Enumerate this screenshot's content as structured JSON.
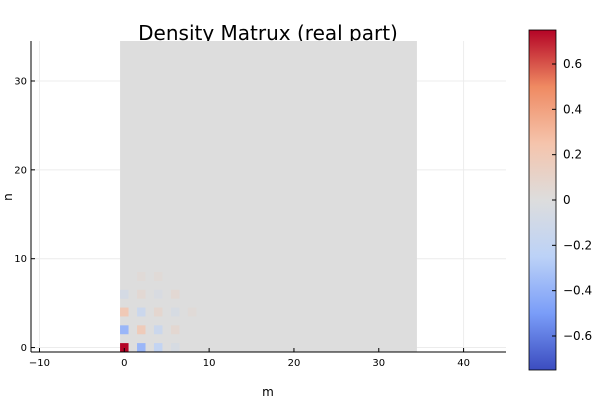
{
  "chart_data": {
    "type": "heatmap",
    "title": "Density Matrux (real part)",
    "xlabel": "m",
    "ylabel": "n",
    "xlim": [
      -11,
      45
    ],
    "ylim": [
      -0.5,
      34.5
    ],
    "xticks": [
      -10,
      0,
      10,
      20,
      30,
      40
    ],
    "yticks": [
      0,
      10,
      20,
      30
    ],
    "grid": true,
    "matrix_extent": {
      "m": [
        -0.5,
        34.5
      ],
      "n": [
        -0.5,
        34.5
      ]
    },
    "background_value": 0,
    "colormap": {
      "name": "coolwarm",
      "min": -0.75,
      "max": 0.75,
      "stops": [
        "#3b4cc0",
        "#7a9df8",
        "#bcd2f7",
        "#dddddd",
        "#f5c4ac",
        "#ef8a62",
        "#b40426"
      ]
    },
    "colorbar_ticks": [
      0.6,
      0.4,
      0.2,
      0,
      -0.2,
      -0.4,
      -0.6
    ],
    "colorbar_tick_labels": [
      "0.6",
      "0.4",
      "0.2",
      "0",
      "−0.2",
      "−0.4",
      "−0.6"
    ],
    "cells": [
      {
        "m": 0,
        "n": 0,
        "value": 0.75
      },
      {
        "m": 2,
        "n": 0,
        "value": -0.38
      },
      {
        "m": 4,
        "n": 0,
        "value": -0.2
      },
      {
        "m": 6,
        "n": 0,
        "value": -0.05
      },
      {
        "m": 0,
        "n": 2,
        "value": -0.38
      },
      {
        "m": 2,
        "n": 2,
        "value": 0.18
      },
      {
        "m": 4,
        "n": 2,
        "value": -0.14
      },
      {
        "m": 6,
        "n": 2,
        "value": 0.06
      },
      {
        "m": 0,
        "n": 4,
        "value": 0.2
      },
      {
        "m": 2,
        "n": 4,
        "value": -0.14
      },
      {
        "m": 4,
        "n": 4,
        "value": 0.07
      },
      {
        "m": 6,
        "n": 4,
        "value": -0.05
      },
      {
        "m": 8,
        "n": 4,
        "value": 0.03
      },
      {
        "m": 0,
        "n": 6,
        "value": -0.07
      },
      {
        "m": 2,
        "n": 6,
        "value": 0.05
      },
      {
        "m": 4,
        "n": 6,
        "value": -0.04
      },
      {
        "m": 6,
        "n": 6,
        "value": 0.05
      },
      {
        "m": 2,
        "n": 8,
        "value": 0.03
      },
      {
        "m": 4,
        "n": 8,
        "value": 0.03
      }
    ]
  }
}
